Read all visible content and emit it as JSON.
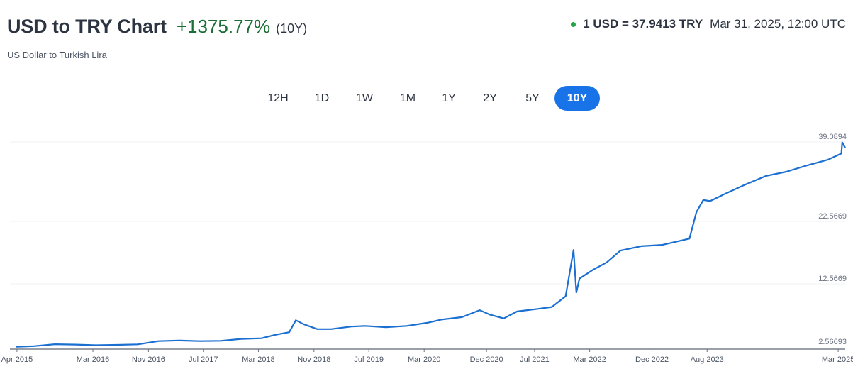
{
  "header": {
    "title": "USD to TRY Chart",
    "change": "+1375.77%",
    "period": "(10Y)",
    "subtitle": "US Dollar to Turkish Lira",
    "rate": "1 USD = 37.9413 TRY",
    "timestamp": "Mar 31, 2025, 12:00 UTC"
  },
  "tabs": [
    {
      "label": "12H",
      "active": false
    },
    {
      "label": "1D",
      "active": false
    },
    {
      "label": "1W",
      "active": false
    },
    {
      "label": "1M",
      "active": false
    },
    {
      "label": "1Y",
      "active": false
    },
    {
      "label": "2Y",
      "active": false
    },
    {
      "label": "5Y",
      "active": false
    },
    {
      "label": "10Y",
      "active": true
    }
  ],
  "colors": {
    "line": "#1a6fd0",
    "positive": "#1a6e36",
    "active_tab": "#1973e8",
    "status_dot": "#22a447"
  },
  "chart_data": {
    "type": "line",
    "title": "USD to TRY Chart",
    "xlabel": "",
    "ylabel": "",
    "yticks": [
      2.56693,
      12.5669,
      22.5669,
      39.0894
    ],
    "ytick_labels": [
      "2.56693",
      "12.5669",
      "22.5669",
      "39.0894"
    ],
    "ylim": [
      2.56693,
      39.0894
    ],
    "xticks": [
      "2015-04",
      "2016-03",
      "2016-11",
      "2017-07",
      "2018-03",
      "2018-11",
      "2019-07",
      "2020-03",
      "2020-12",
      "2021-07",
      "2022-03",
      "2022-12",
      "2023-08",
      "2025-03"
    ],
    "xtick_labels": [
      "Apr 2015",
      "Mar 2016",
      "Nov 2016",
      "Jul 2017",
      "Mar 2018",
      "Nov 2018",
      "Jul 2019",
      "Mar 2020",
      "Dec 2020",
      "Jul 2021",
      "Mar 2022",
      "Dec 2022",
      "Aug 2023",
      "Mar 2025"
    ],
    "xlim": [
      "2015-03",
      "2025-04"
    ],
    "grid": "horizontal",
    "series": [
      {
        "points": [
          [
            "2015-03-31",
            2.6
          ],
          [
            "2015-06-15",
            2.7
          ],
          [
            "2015-09-15",
            3.0
          ],
          [
            "2015-12-15",
            2.95
          ],
          [
            "2016-03-15",
            2.85
          ],
          [
            "2016-06-15",
            2.9
          ],
          [
            "2016-09-15",
            2.98
          ],
          [
            "2016-12-15",
            3.5
          ],
          [
            "2017-03-15",
            3.6
          ],
          [
            "2017-06-15",
            3.5
          ],
          [
            "2017-09-15",
            3.55
          ],
          [
            "2017-12-15",
            3.85
          ],
          [
            "2018-03-15",
            3.95
          ],
          [
            "2018-05-15",
            4.5
          ],
          [
            "2018-07-15",
            4.9
          ],
          [
            "2018-08-13",
            6.8
          ],
          [
            "2018-09-15",
            6.2
          ],
          [
            "2018-11-15",
            5.4
          ],
          [
            "2019-01-15",
            5.4
          ],
          [
            "2019-04-15",
            5.8
          ],
          [
            "2019-06-15",
            5.9
          ],
          [
            "2019-09-15",
            5.7
          ],
          [
            "2019-12-15",
            5.9
          ],
          [
            "2020-03-15",
            6.4
          ],
          [
            "2020-05-15",
            6.9
          ],
          [
            "2020-08-15",
            7.3
          ],
          [
            "2020-11-01",
            8.4
          ],
          [
            "2020-12-15",
            7.7
          ],
          [
            "2021-02-15",
            7.1
          ],
          [
            "2021-04-15",
            8.2
          ],
          [
            "2021-07-15",
            8.6
          ],
          [
            "2021-09-15",
            8.9
          ],
          [
            "2021-11-15",
            10.6
          ],
          [
            "2021-12-20",
            18.0
          ],
          [
            "2022-01-01",
            11.2
          ],
          [
            "2022-01-15",
            13.4
          ],
          [
            "2022-03-15",
            14.8
          ],
          [
            "2022-05-15",
            16.0
          ],
          [
            "2022-07-15",
            17.9
          ],
          [
            "2022-10-15",
            18.6
          ],
          [
            "2023-01-15",
            18.8
          ],
          [
            "2023-05-15",
            19.8
          ],
          [
            "2023-06-15",
            24.5
          ],
          [
            "2023-07-15",
            27.0
          ],
          [
            "2023-08-15",
            26.8
          ],
          [
            "2023-10-15",
            28.2
          ],
          [
            "2024-01-15",
            30.2
          ],
          [
            "2024-04-15",
            32.0
          ],
          [
            "2024-07-15",
            32.9
          ],
          [
            "2024-10-15",
            34.2
          ],
          [
            "2025-01-15",
            35.4
          ],
          [
            "2025-03-15",
            36.7
          ],
          [
            "2025-03-19",
            39.0
          ],
          [
            "2025-03-31",
            37.94
          ]
        ]
      }
    ]
  }
}
